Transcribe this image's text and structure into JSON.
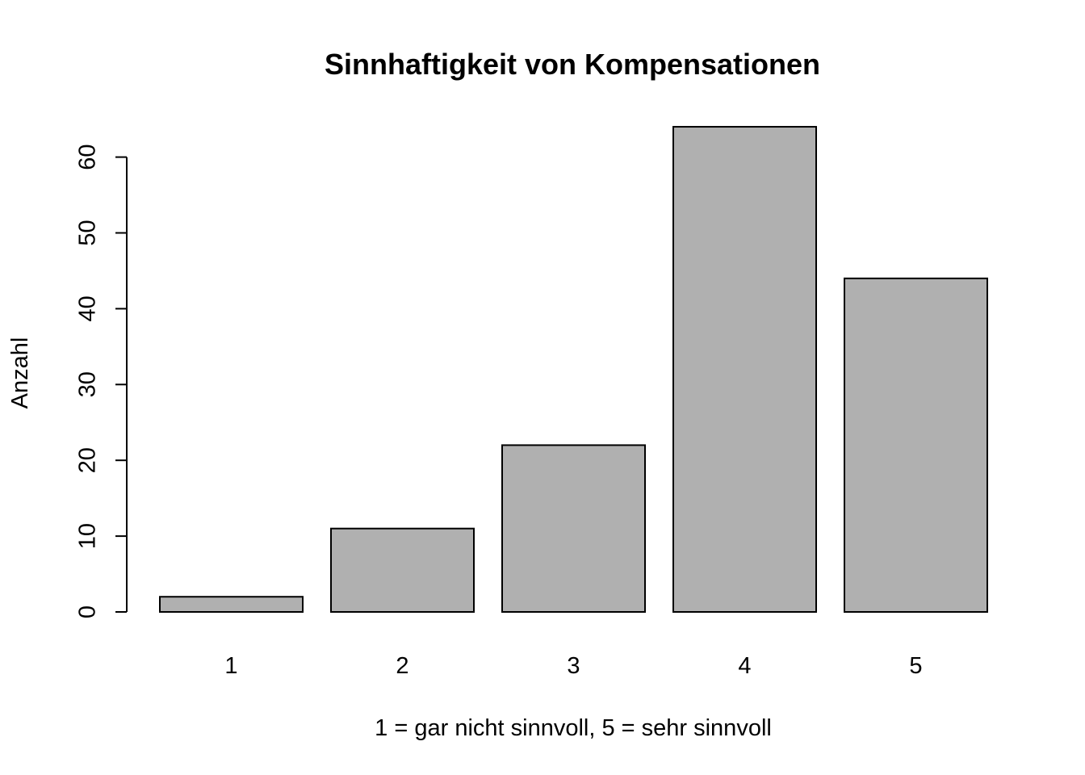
{
  "chart_data": {
    "type": "bar",
    "title": "Sinnhaftigkeit von Kompensationen",
    "xlabel": "1 = gar nicht sinnvoll, 5 = sehr sinnvoll",
    "ylabel": "Anzahl",
    "categories": [
      "1",
      "2",
      "3",
      "4",
      "5"
    ],
    "values": [
      2,
      11,
      22,
      64,
      44
    ],
    "ylim": [
      0,
      64
    ],
    "yticks": [
      0,
      10,
      20,
      30,
      40,
      50,
      60
    ],
    "ytick_labels": [
      "0",
      "10",
      "20",
      "30",
      "40",
      "50",
      "60"
    ],
    "bar_color": "#b0b0b0",
    "grid": false
  }
}
